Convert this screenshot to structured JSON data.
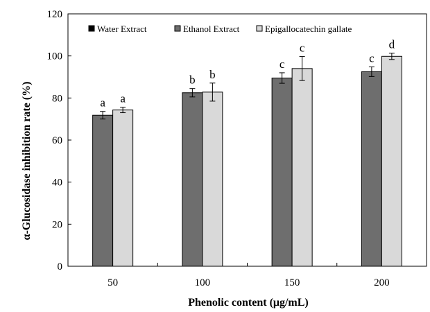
{
  "chart_data": {
    "type": "bar",
    "title": "",
    "xlabel": "Phenolic content (μg/mL)",
    "ylabel": "α-Glucosidase inhibition rate (%)",
    "categories": [
      "50",
      "100",
      "150",
      "200"
    ],
    "ylim": [
      0,
      120
    ],
    "yticks": [
      0,
      20,
      40,
      60,
      80,
      100,
      120
    ],
    "legend_position": "top",
    "series": [
      {
        "name": "Water Extract",
        "color": "#000000",
        "values": [
          null,
          null,
          null,
          null
        ],
        "errors": [
          null,
          null,
          null,
          null
        ],
        "labels": [
          "",
          "",
          "",
          ""
        ]
      },
      {
        "name": "Ethanol Extract",
        "color": "#6e6e6e",
        "values": [
          71.8,
          82.5,
          89.5,
          92.5
        ],
        "errors": [
          1.8,
          2.0,
          2.5,
          2.3
        ],
        "labels": [
          "a",
          "b",
          "c",
          "c"
        ]
      },
      {
        "name": "Epigallocatechin gallate",
        "color": "#d9d9d9",
        "values": [
          74.3,
          82.8,
          94.0,
          99.8
        ],
        "errors": [
          1.3,
          4.3,
          5.7,
          1.5
        ],
        "labels": [
          "a",
          "b",
          "c",
          "d"
        ]
      }
    ]
  }
}
